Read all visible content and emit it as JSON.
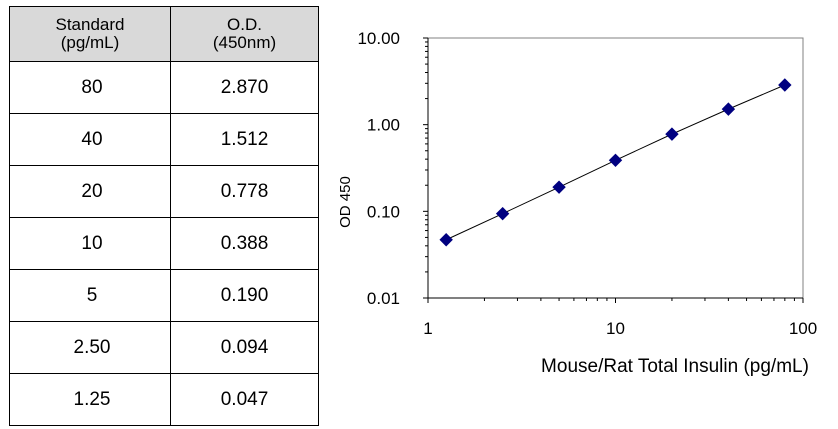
{
  "table": {
    "headers": [
      {
        "line1": "Standard",
        "line2": "(pg/mL)"
      },
      {
        "line1": "O.D.",
        "line2": "(450nm)"
      }
    ],
    "rows": [
      {
        "standard": "80",
        "od": "2.870"
      },
      {
        "standard": "40",
        "od": "1.512"
      },
      {
        "standard": "20",
        "od": "0.778"
      },
      {
        "standard": "10",
        "od": "0.388"
      },
      {
        "standard": "5",
        "od": "0.190"
      },
      {
        "standard": "2.50",
        "od": "0.094"
      },
      {
        "standard": "1.25",
        "od": "0.047"
      }
    ]
  },
  "chart_data": {
    "type": "scatter",
    "x_scale": "log",
    "y_scale": "log",
    "xlim": [
      1,
      100
    ],
    "ylim": [
      0.01,
      10
    ],
    "xticks": [
      "1",
      "10",
      "100"
    ],
    "yticks": [
      "0.01",
      "0.10",
      "1.00",
      "10.00"
    ],
    "xlabel": "Mouse/Rat Total Insulin (pg/mL)",
    "ylabel": "OD 450",
    "grid": false,
    "legend": "none",
    "trendline": true,
    "marker_color": "#000080",
    "points": [
      {
        "x": 1.25,
        "y": 0.047
      },
      {
        "x": 2.5,
        "y": 0.094
      },
      {
        "x": 5,
        "y": 0.19
      },
      {
        "x": 10,
        "y": 0.388
      },
      {
        "x": 20,
        "y": 0.778
      },
      {
        "x": 40,
        "y": 1.512
      },
      {
        "x": 80,
        "y": 2.87
      }
    ]
  }
}
